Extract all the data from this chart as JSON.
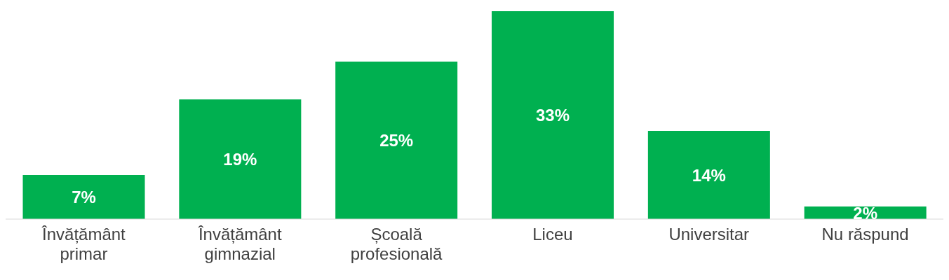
{
  "chart_data": {
    "type": "bar",
    "categories": [
      "Învățământ primar",
      "Învățământ gimnazial",
      "Școală profesională",
      "Liceu",
      "Universitar",
      "Nu răspund"
    ],
    "values": [
      7,
      19,
      25,
      33,
      14,
      2
    ],
    "value_labels": [
      "7%",
      "19%",
      "25%",
      "33%",
      "14%",
      "2%"
    ],
    "color": "#00b050"
  }
}
